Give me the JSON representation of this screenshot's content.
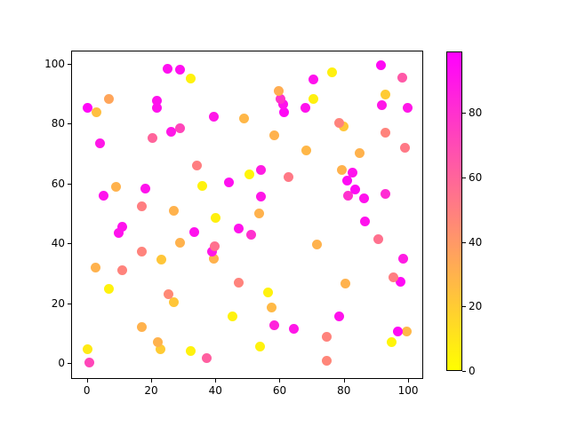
{
  "chart_data": {
    "type": "scatter",
    "title": "",
    "xlabel": "",
    "ylabel": "",
    "xticks": [
      0,
      20,
      40,
      60,
      80,
      100
    ],
    "yticks": [
      0,
      20,
      40,
      60,
      80,
      100
    ],
    "xlim": [
      -4.9,
      104.7
    ],
    "ylim": [
      -5.2,
      104.4
    ],
    "grid": false,
    "legend": "none",
    "colorbar": {
      "position": "right",
      "colormap": "spring_r",
      "low_color": "#ffff00",
      "high_color": "#ff00ff",
      "vmin": 0,
      "vmax": 99,
      "ticks": [
        0,
        20,
        40,
        60,
        80
      ]
    },
    "points_format": "[x, y, color_value]",
    "points": [
      [
        25.0,
        98.4,
        93
      ],
      [
        29.1,
        98.1,
        93
      ],
      [
        32.2,
        95.2,
        5
      ],
      [
        7.0,
        88.4,
        35
      ],
      [
        0.1,
        85.4,
        96
      ],
      [
        3.1,
        83.9,
        25
      ],
      [
        21.9,
        87.8,
        92
      ],
      [
        21.9,
        85.3,
        92
      ],
      [
        39.6,
        82.4,
        90
      ],
      [
        48.8,
        81.6,
        28
      ],
      [
        26.1,
        77.2,
        90
      ],
      [
        29.1,
        78.6,
        72
      ],
      [
        20.3,
        75.3,
        60
      ],
      [
        4.0,
        73.3,
        90
      ],
      [
        34.4,
        66.1,
        50
      ],
      [
        50.7,
        63.2,
        4
      ],
      [
        44.1,
        60.5,
        93
      ],
      [
        35.8,
        59.3,
        5
      ],
      [
        9.2,
        59.0,
        30
      ],
      [
        18.1,
        58.2,
        92
      ],
      [
        5.1,
        56.1,
        92
      ],
      [
        17.2,
        52.5,
        50
      ],
      [
        27.2,
        51.0,
        30
      ],
      [
        40.2,
        48.7,
        6
      ],
      [
        91.6,
        99.6,
        95
      ],
      [
        76.4,
        97.2,
        6
      ],
      [
        70.6,
        94.9,
        92
      ],
      [
        98.3,
        95.5,
        65
      ],
      [
        59.6,
        91.0,
        32
      ],
      [
        60.4,
        88.4,
        78
      ],
      [
        61.2,
        86.6,
        92
      ],
      [
        61.5,
        83.9,
        95
      ],
      [
        92.8,
        89.8,
        20
      ],
      [
        70.6,
        88.4,
        6
      ],
      [
        67.9,
        85.4,
        92
      ],
      [
        91.9,
        86.3,
        90
      ],
      [
        99.9,
        85.4,
        90
      ],
      [
        78.6,
        80.4,
        48
      ],
      [
        80.0,
        79.2,
        22
      ],
      [
        58.4,
        76.2,
        30
      ],
      [
        92.8,
        77.1,
        48
      ],
      [
        99.1,
        72.1,
        52
      ],
      [
        68.4,
        71.2,
        28
      ],
      [
        85.0,
        70.3,
        30
      ],
      [
        54.3,
        64.7,
        88
      ],
      [
        62.9,
        62.3,
        52
      ],
      [
        79.5,
        64.7,
        30
      ],
      [
        82.8,
        63.8,
        92
      ],
      [
        80.9,
        61.1,
        95
      ],
      [
        83.6,
        57.9,
        95
      ],
      [
        81.4,
        56.1,
        80
      ],
      [
        86.4,
        55.2,
        92
      ],
      [
        92.8,
        56.7,
        82
      ],
      [
        54.3,
        55.8,
        90
      ],
      [
        53.7,
        49.9,
        30
      ],
      [
        86.7,
        47.5,
        92
      ],
      [
        11.1,
        45.7,
        92
      ],
      [
        9.8,
        43.6,
        92
      ],
      [
        33.3,
        43.9,
        92
      ],
      [
        47.4,
        45.1,
        92
      ],
      [
        51.2,
        43.0,
        80
      ],
      [
        28.9,
        40.4,
        30
      ],
      [
        17.2,
        37.4,
        48
      ],
      [
        39.9,
        39.2,
        55
      ],
      [
        39.1,
        37.4,
        90
      ],
      [
        39.4,
        35.0,
        30
      ],
      [
        23.3,
        34.7,
        22
      ],
      [
        2.8,
        32.1,
        30
      ],
      [
        10.9,
        31.2,
        48
      ],
      [
        7.0,
        25.0,
        5
      ],
      [
        47.4,
        26.8,
        48
      ],
      [
        25.3,
        23.2,
        46
      ],
      [
        27.2,
        20.5,
        22
      ],
      [
        45.4,
        15.8,
        5
      ],
      [
        17.0,
        12.2,
        30
      ],
      [
        22.2,
        7.2,
        30
      ],
      [
        23.0,
        4.8,
        20
      ],
      [
        32.2,
        4.2,
        5
      ],
      [
        0.1,
        4.8,
        8
      ],
      [
        0.9,
        0.4,
        72
      ],
      [
        37.2,
        1.9,
        62
      ],
      [
        90.8,
        41.5,
        55
      ],
      [
        71.7,
        39.8,
        30
      ],
      [
        98.6,
        35.0,
        88
      ],
      [
        95.5,
        28.8,
        50
      ],
      [
        97.7,
        27.3,
        95
      ],
      [
        80.6,
        26.7,
        30
      ],
      [
        56.5,
        23.8,
        5
      ],
      [
        57.5,
        18.7,
        27
      ],
      [
        58.4,
        12.8,
        85
      ],
      [
        64.5,
        11.6,
        90
      ],
      [
        78.6,
        15.8,
        92
      ],
      [
        74.8,
        9.0,
        48
      ],
      [
        54.0,
        5.7,
        5
      ],
      [
        96.9,
        10.5,
        95
      ],
      [
        99.7,
        10.5,
        28
      ],
      [
        95.0,
        7.2,
        4
      ],
      [
        74.8,
        1.0,
        47
      ]
    ]
  }
}
